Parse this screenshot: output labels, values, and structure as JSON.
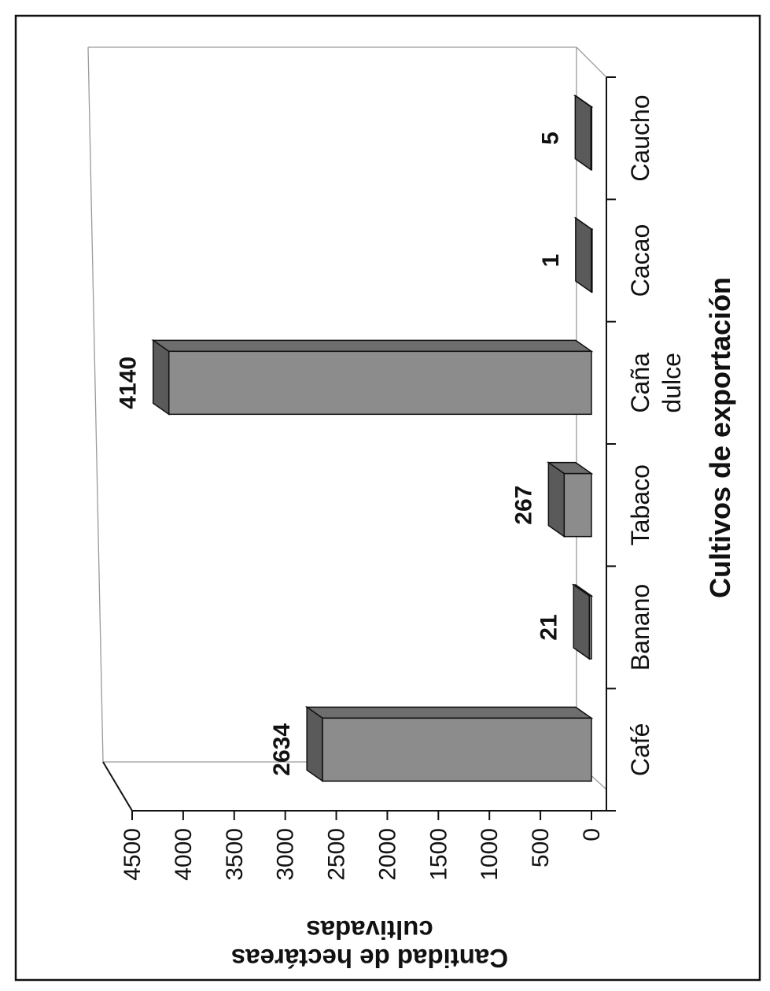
{
  "chart_data": {
    "type": "bar",
    "orientation": "rotated-90-clockwise",
    "categories": [
      "Café",
      "Banano",
      "Tabaco",
      "Caña dulce",
      "Cacao",
      "Caucho"
    ],
    "category_lines": [
      [
        "Café"
      ],
      [
        "Banano"
      ],
      [
        "Tabaco"
      ],
      [
        "Caña",
        "dulce"
      ],
      [
        "Cacao"
      ],
      [
        "Caucho"
      ]
    ],
    "values": [
      2634,
      21,
      267,
      4140,
      1,
      5
    ],
    "data_labels": [
      "2634",
      "21",
      "267",
      "4140",
      "1",
      "5"
    ],
    "title": "",
    "xlabel": "Cultivos de exportación",
    "ylabel_lines": [
      "Cantidad de hectáreas",
      "cultivadas"
    ],
    "ylim": [
      0,
      4500
    ],
    "y_ticks": [
      0,
      500,
      1000,
      1500,
      2000,
      2500,
      3000,
      3500,
      4000,
      4500
    ],
    "grid": false,
    "legend": "none",
    "bar_color": "#8c8c8c",
    "bar_top_color": "#6e6e6e",
    "bar_side_color": "#5a5a5a"
  }
}
